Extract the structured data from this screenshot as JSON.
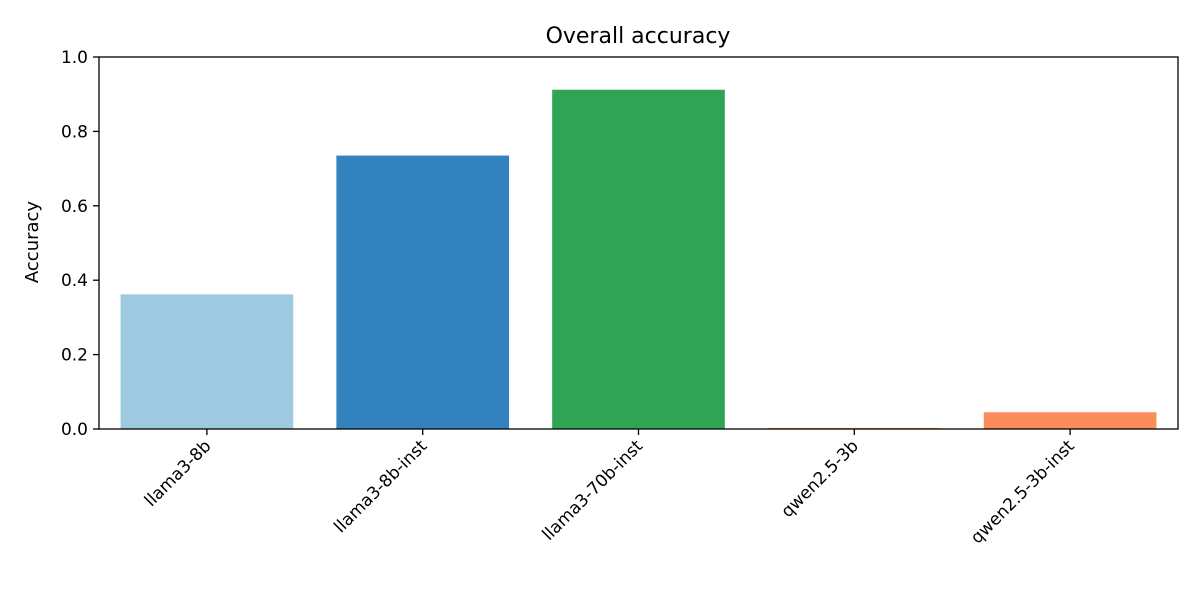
{
  "chart_data": {
    "type": "bar",
    "title": "Overall accuracy",
    "xlabel": "",
    "ylabel": "Accuracy",
    "categories": [
      "llama3-8b",
      "llama3-8b-inst",
      "llama3-70b-inst",
      "qwen2.5-3b",
      "qwen2.5-3b-inst"
    ],
    "values": [
      0.362,
      0.735,
      0.912,
      0.003,
      0.045
    ],
    "colors": [
      "#9ecae1",
      "#3182bd",
      "#31a354",
      "#fdae6b",
      "#fc8d59"
    ],
    "ylim": [
      0,
      1.0
    ],
    "yticks": [
      "0.0",
      "0.2",
      "0.4",
      "0.6",
      "0.8",
      "1.0"
    ],
    "grid": false,
    "legend": "none"
  }
}
